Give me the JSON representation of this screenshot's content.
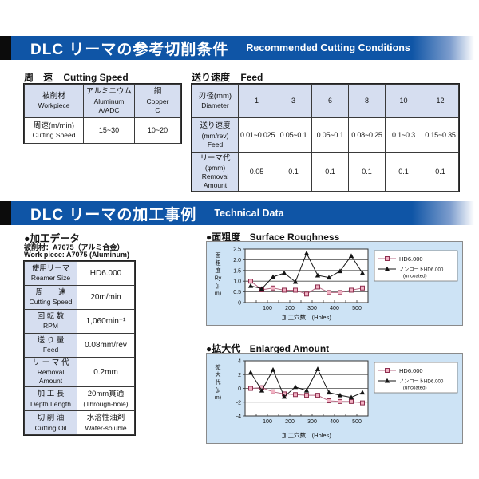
{
  "colors": {
    "header_blue": "#0f55a6",
    "table_header_bg": "#d6def0",
    "panel_bg": "#cde3f5",
    "square_fill": "#f2b3c4",
    "square_stroke": "#8e2f4f",
    "square_line": "#b76b85",
    "triangle": "#141414"
  },
  "section1": {
    "header": {
      "title_jp": "DLC リーマの参考切削条件",
      "title_en": "Recommended Cutting Conditions"
    },
    "cutting_speed_table": {
      "title_jp": "周　速",
      "title_en": "Cutting Speed",
      "col0_jp": "被削材",
      "col0_en": "Workpiece",
      "col1_jp": "アルミニウム",
      "col1_en": "Aluminum",
      "col1_sub": "A/ADC",
      "col2_jp": "銅",
      "col2_en": "Copper",
      "col2_sub": "C",
      "row_label_jp": "周速(m/min)",
      "row_label_en": "Cutting Speed",
      "values": [
        "15~30",
        "10~20"
      ]
    },
    "feed_table": {
      "title_jp": "送り速度",
      "title_en": "Feed",
      "diam_label_jp": "刃径(mm)",
      "diam_label_en": "Diameter",
      "diameters": [
        "1",
        "3",
        "6",
        "8",
        "10",
        "12"
      ],
      "feed_label_1": "送り速度",
      "feed_label_2": "(mm/rev)",
      "feed_label_3": "Feed",
      "feed_values": [
        "0.01~0.025",
        "0.05~0.1",
        "0.05~0.1",
        "0.08~0.25",
        "0.1~0.3",
        "0.15~0.35"
      ],
      "removal_label_1": "リーマ代",
      "removal_label_2": "(φmm)",
      "removal_label_3": "Removal",
      "removal_label_4": "Amount",
      "removal_values": [
        "0.05",
        "0.1",
        "0.1",
        "0.1",
        "0.1",
        "0.1"
      ]
    }
  },
  "section2": {
    "header": {
      "title_jp": "DLC リーマの加工事例",
      "title_en": "Technical Data"
    },
    "machining_data": {
      "title": "●加工データ",
      "workpiece_jp": "被削材：A7075（アルミ合金）",
      "workpiece_en": "Work piece: A7075 (Aluminum)",
      "rows": [
        {
          "label_jp": "使用リーマ",
          "label_en": "Reamer Size",
          "value": "HD6.000",
          "value2": ""
        },
        {
          "label_jp": "周　　速",
          "label_en": "Cutting Speed",
          "value": "20m/min",
          "value2": ""
        },
        {
          "label_jp": "回 転 数",
          "label_en": "RPM",
          "value": "1,060min⁻¹",
          "value2": ""
        },
        {
          "label_jp": "送 り 量",
          "label_en": "Feed",
          "value": "0.08mm/rev",
          "value2": ""
        },
        {
          "label_jp": "リ ー マ 代",
          "label_en": "Removal Amount",
          "value": "0.2mm",
          "value2": ""
        },
        {
          "label_jp": "加 工 長",
          "label_en": "Depth Length",
          "value": "20mm貫通",
          "value2": "(Through-hole)"
        },
        {
          "label_jp": "切 削 油",
          "label_en": "Cutting Oil",
          "value": "水溶性油剤",
          "value2": "Water-soluble"
        }
      ]
    }
  },
  "chart_data": [
    {
      "type": "line",
      "title_jp": "●面粗度",
      "title_en": "Surface Roughness",
      "ylabel": "面粗度Ry(μm)",
      "ylabel_lines": [
        "面",
        "粗",
        "度",
        "Ry",
        "(μ",
        "m)"
      ],
      "xlabel": "加工穴数　(Holes)",
      "xlim": [
        0,
        550
      ],
      "ylim": [
        0,
        2.5
      ],
      "yticks": [
        0,
        0.5,
        1,
        1.5,
        2,
        2.5
      ],
      "ytick_labels": [
        "0",
        "0.5",
        "1.0",
        "1.5",
        "2.0",
        "2.5"
      ],
      "xticks": [
        100,
        200,
        300,
        400,
        500
      ],
      "grid": true,
      "legend_position": "right",
      "x": [
        25,
        75,
        125,
        175,
        225,
        275,
        325,
        375,
        425,
        475,
        525
      ],
      "series": [
        {
          "name": "HD6.000",
          "name2": "",
          "marker": "square",
          "values": [
            1.0,
            0.6,
            0.68,
            0.58,
            0.58,
            0.4,
            0.73,
            0.47,
            0.47,
            0.58,
            0.68
          ]
        },
        {
          "name": "ノンコートHD6.000",
          "name2": "(uncoated)",
          "marker": "triangle",
          "values": [
            0.78,
            0.65,
            1.2,
            1.38,
            0.97,
            2.3,
            1.27,
            1.17,
            1.47,
            2.18,
            1.38
          ]
        }
      ]
    },
    {
      "type": "line",
      "title_jp": "●拡大代",
      "title_en": "Enlarged Amount",
      "ylabel": "拡大代(μm)",
      "ylabel_lines": [
        "拡",
        "大",
        "代",
        "(μ",
        "m)"
      ],
      "xlabel": "加工穴数　(Holes)",
      "xlim": [
        0,
        550
      ],
      "ylim": [
        -4,
        4
      ],
      "yticks": [
        -4,
        -2,
        0,
        2,
        4
      ],
      "ytick_labels": [
        "-4",
        "-2",
        "0",
        "2",
        "4"
      ],
      "xticks": [
        100,
        200,
        300,
        400,
        500
      ],
      "grid": true,
      "legend_position": "right",
      "x": [
        25,
        75,
        125,
        175,
        225,
        275,
        325,
        375,
        425,
        475,
        525
      ],
      "series": [
        {
          "name": "HD6.000",
          "name2": "",
          "marker": "square",
          "values": [
            0,
            0.1,
            -0.5,
            -0.8,
            -0.9,
            -1.0,
            -1.0,
            -1.8,
            -1.9,
            -1.9,
            -2.1
          ]
        },
        {
          "name": "ノンコートHD6.000",
          "name2": "(uncoated)",
          "marker": "triangle",
          "values": [
            2.3,
            -0.3,
            2.7,
            -1.2,
            0.2,
            -0.3,
            2.8,
            -0.6,
            -1.0,
            -1.3,
            -0.6
          ]
        }
      ]
    }
  ]
}
